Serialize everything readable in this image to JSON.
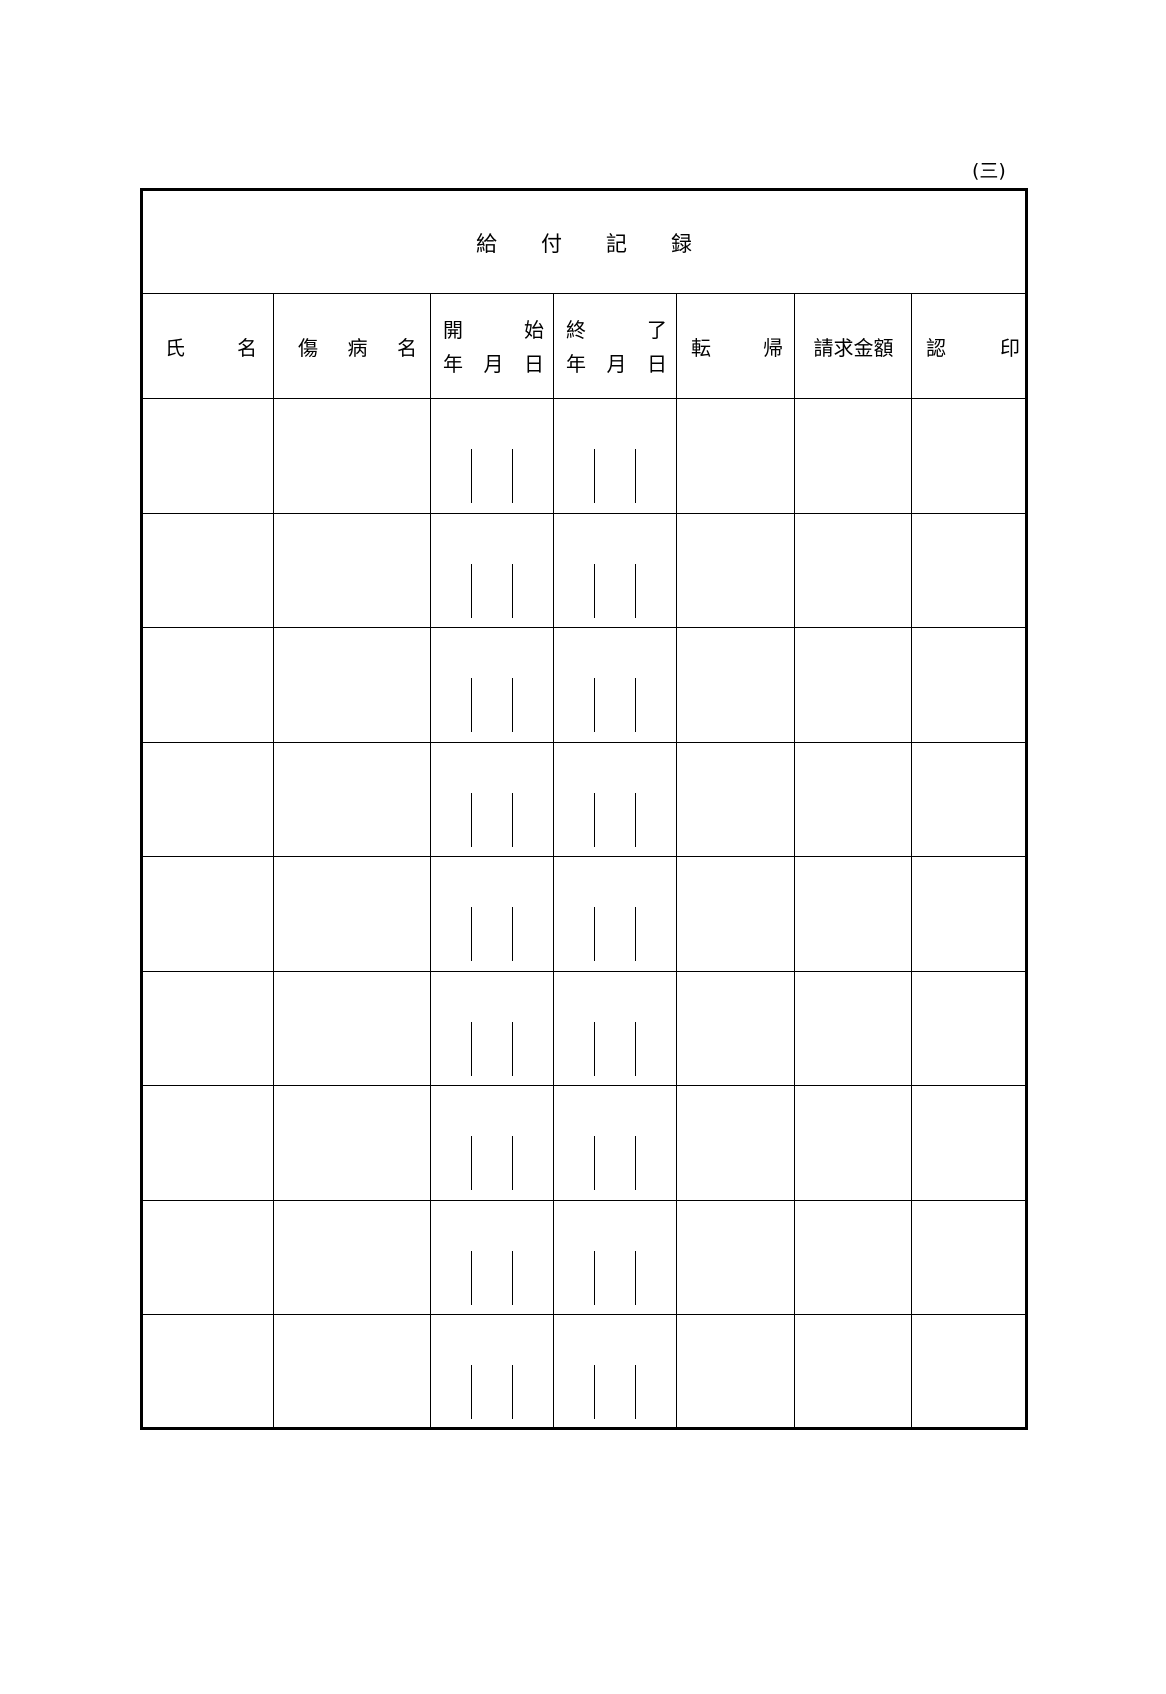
{
  "page_number": "(三)",
  "title": [
    "給",
    "付",
    "記",
    "録"
  ],
  "headers": {
    "name": [
      "氏",
      "名"
    ],
    "illness": [
      "傷",
      "病",
      "名"
    ],
    "start": {
      "top": [
        "開",
        "始"
      ],
      "bottom": [
        "年",
        "月",
        "日"
      ]
    },
    "end": {
      "top": [
        "終",
        "了"
      ],
      "bottom": [
        "年",
        "月",
        "日"
      ]
    },
    "outcome": [
      "転",
      "帰"
    ],
    "amount": "請求金額",
    "seal": [
      "認",
      "印"
    ]
  },
  "row_count": 9
}
